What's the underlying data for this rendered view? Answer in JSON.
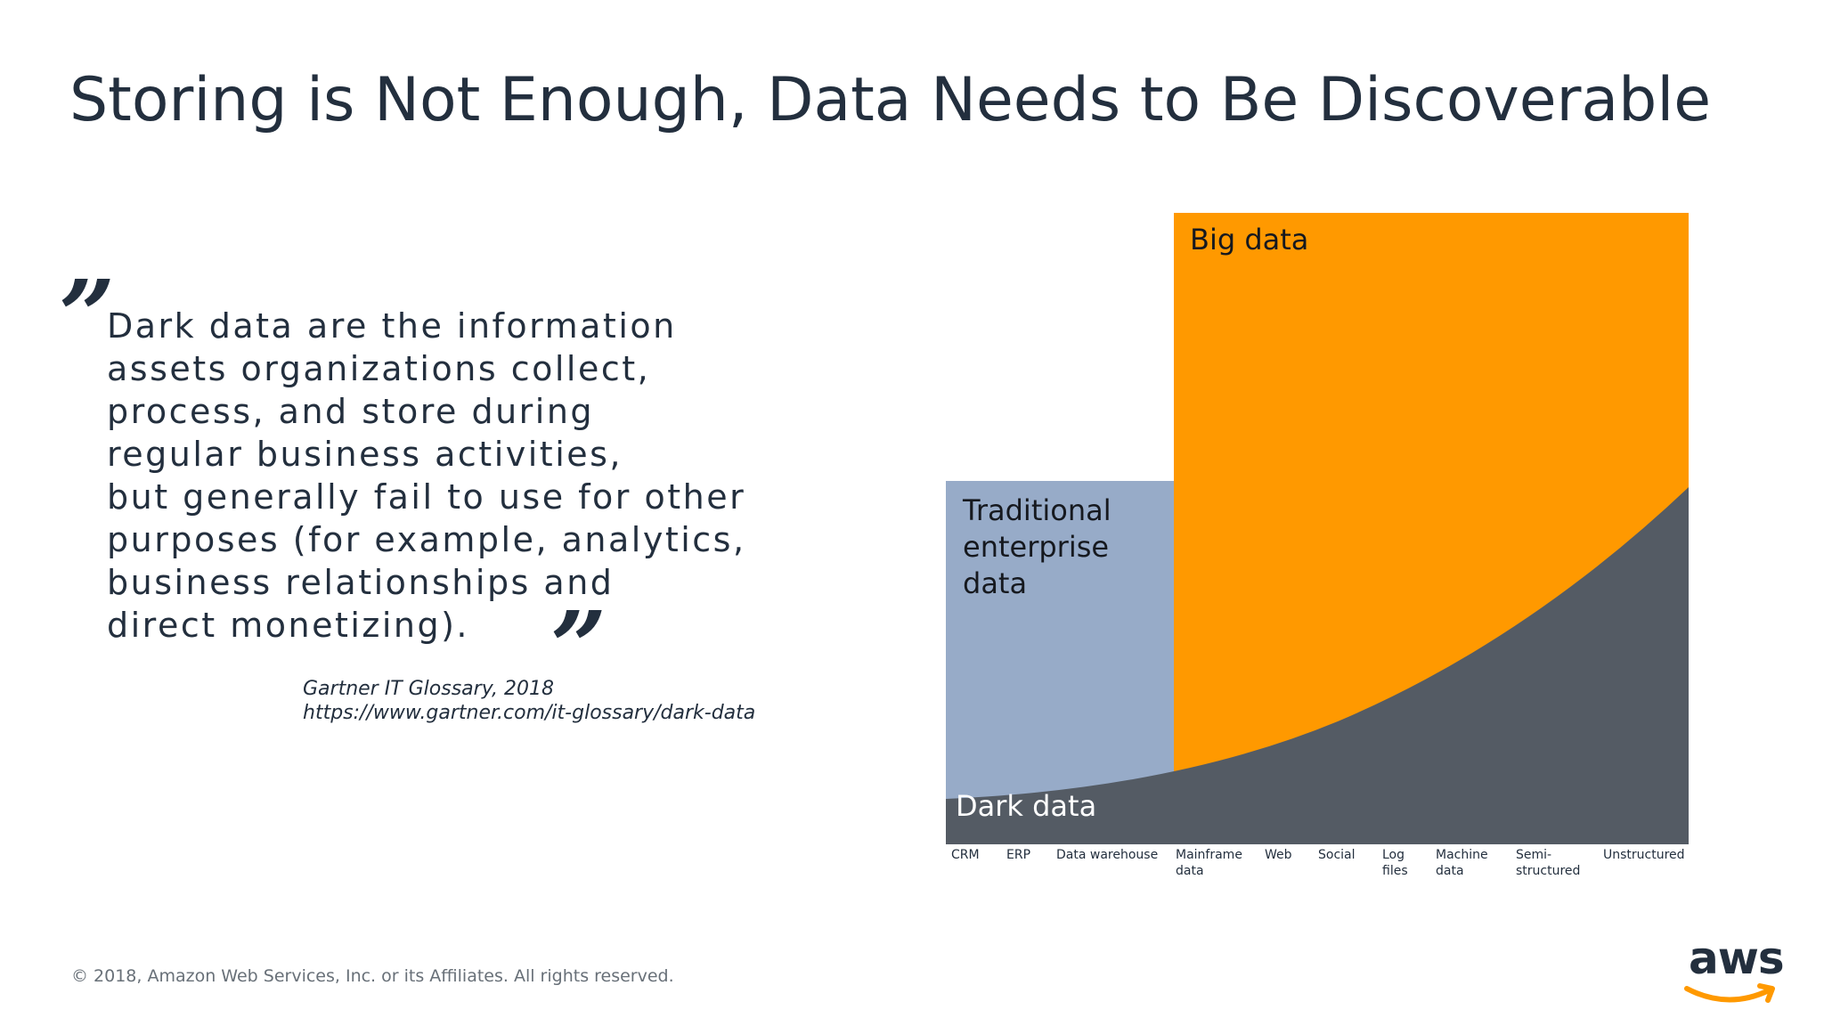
{
  "slide": {
    "title": "Storing is Not Enough, Data Needs to Be Discoverable",
    "quote_open": "”",
    "quote_close": "”",
    "quote_lines": [
      "Dark data are the information",
      "assets organizations collect,",
      "process, and store during",
      "regular business activities,",
      "but generally fail to use for other",
      "purposes (for example, analytics,",
      "business relationships and",
      "direct monetizing)."
    ],
    "citation": {
      "source": "Gartner IT Glossary, 2018",
      "url": "https://www.gartner.com/it-glossary/dark-data"
    },
    "footer": "© 2018, Amazon Web Services, Inc. or its Affiliates. All rights reserved.",
    "logo": {
      "text": "aws",
      "icon": "amazon-smile-arrow-icon"
    }
  },
  "diagram": {
    "regions": {
      "big_data": "Big data",
      "traditional": [
        "Traditional",
        "enterprise",
        "data"
      ],
      "dark_data": "Dark data"
    },
    "x_categories": [
      [
        "CRM"
      ],
      [
        "ERP"
      ],
      [
        "Data warehouse"
      ],
      [
        "Mainframe",
        "data"
      ],
      [
        "Web"
      ],
      [
        "Social"
      ],
      [
        "Log",
        "files"
      ],
      [
        "Machine",
        "data"
      ],
      [
        "Semi-",
        "structured"
      ],
      [
        "Unstructured"
      ]
    ],
    "colors": {
      "big_data": "#ff9900",
      "traditional": "#97abc8",
      "dark_data": "#545b64"
    }
  }
}
